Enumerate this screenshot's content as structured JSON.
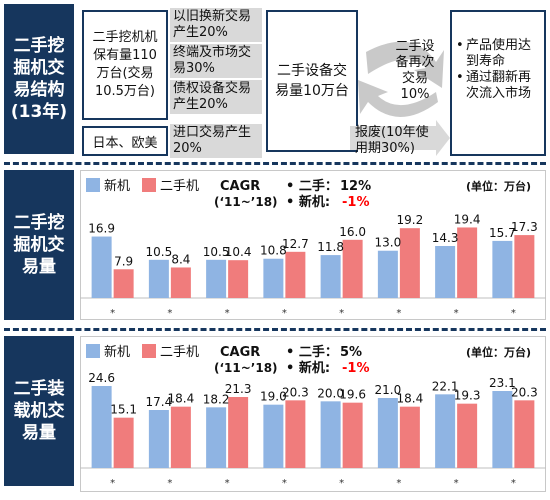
{
  "section1": {
    "label": "二手挖\n掘机交\n易结构\n(13年)",
    "box_stock": "二手挖机机\n保有量110\n万台(交易\n10.5万台)",
    "box_origin": "日本、欧美",
    "flow1": "以旧换新交易\n产生20%",
    "flow2": "终端及市场交\n易30%",
    "flow3": "债权设备交易\n产生20%",
    "flow4": "进口交易产生\n20%",
    "box_trade": "二手设备交\n易量10万台",
    "recirc": "二手设\n备再次\n交易\n10%",
    "scrap": "报废(10年使\n用期30%)",
    "bullets": [
      "产品使用达到寿命",
      "通过翻新再次流入市场"
    ]
  },
  "section2": {
    "label": "二手挖\n掘机交\n易量"
  },
  "section3": {
    "label": "二手装\n载机交\n易量"
  },
  "colors": {
    "new": "#8fb4e3",
    "used": "#f07c7c",
    "navy": "#16365d",
    "highlight": "#ff0000"
  },
  "chart_data": [
    {
      "type": "bar",
      "legend": [
        "新机",
        "二手机"
      ],
      "unit": "(单位：万台)",
      "cagr_title": "CAGR",
      "cagr_period": "(‘11~’18)",
      "cagr_used_label": "二手",
      "cagr_used_value": "12%",
      "cagr_new_label": "新机",
      "cagr_new_value": "-1%",
      "categories": [
        "*",
        "*",
        "*",
        "*",
        "*",
        "*",
        "*",
        "*"
      ],
      "series": [
        {
          "name": "新机",
          "values": [
            16.9,
            10.5,
            10.5,
            10.8,
            11.8,
            13.0,
            14.3,
            15.7
          ]
        },
        {
          "name": "二手机",
          "values": [
            7.9,
            8.4,
            10.4,
            12.7,
            16.0,
            19.2,
            19.4,
            17.3
          ]
        }
      ],
      "ylim": [
        0,
        22
      ]
    },
    {
      "type": "bar",
      "legend": [
        "新机",
        "二手机"
      ],
      "unit": "(单位：万台)",
      "cagr_title": "CAGR",
      "cagr_period": "(‘11~’18)",
      "cagr_used_label": "二手",
      "cagr_used_value": "5%",
      "cagr_new_label": "新机",
      "cagr_new_value": "-1%",
      "categories": [
        "*",
        "*",
        "*",
        "*",
        "*",
        "*",
        "*",
        "*"
      ],
      "series": [
        {
          "name": "新机",
          "values": [
            24.6,
            17.4,
            18.2,
            19.0,
            20.0,
            21.0,
            22.1,
            23.1
          ]
        },
        {
          "name": "二手机",
          "values": [
            15.1,
            18.4,
            21.3,
            20.3,
            19.6,
            18.4,
            19.3,
            20.3
          ]
        }
      ],
      "ylim": [
        0,
        27
      ]
    }
  ]
}
